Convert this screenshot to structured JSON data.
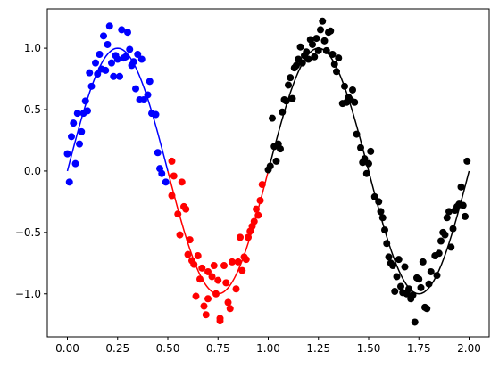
{
  "chart_data": {
    "type": "scatter",
    "title": "",
    "xlabel": "",
    "ylabel": "",
    "xlim": [
      -0.1,
      2.1
    ],
    "ylim": [
      -1.35,
      1.32
    ],
    "grid": false,
    "xticks": [
      0.0,
      0.25,
      0.5,
      0.75,
      1.0,
      1.25,
      1.5,
      1.75,
      2.0
    ],
    "xtick_labels": [
      "0.00",
      "0.25",
      "0.50",
      "0.75",
      "1.00",
      "1.25",
      "1.50",
      "1.75",
      "2.00"
    ],
    "yticks": [
      -1.0,
      -0.5,
      0.0,
      0.5,
      1.0
    ],
    "ytick_labels": [
      "−1.0",
      "−0.5",
      "0.0",
      "0.5",
      "1.0"
    ],
    "series": [
      {
        "color": "#0000ff",
        "line": {
          "x_start": 0.0,
          "x_end": 0.5,
          "fit": "sin(2*pi*x)"
        },
        "points": [
          [
            0.0,
            0.14
          ],
          [
            0.01,
            -0.09
          ],
          [
            0.02,
            0.28
          ],
          [
            0.03,
            0.39
          ],
          [
            0.04,
            0.06
          ],
          [
            0.05,
            0.47
          ],
          [
            0.06,
            0.22
          ],
          [
            0.07,
            0.32
          ],
          [
            0.08,
            0.47
          ],
          [
            0.09,
            0.57
          ],
          [
            0.1,
            0.49
          ],
          [
            0.11,
            0.8
          ],
          [
            0.12,
            0.69
          ],
          [
            0.14,
            0.88
          ],
          [
            0.15,
            0.79
          ],
          [
            0.16,
            0.95
          ],
          [
            0.17,
            0.83
          ],
          [
            0.18,
            1.1
          ],
          [
            0.19,
            0.82
          ],
          [
            0.2,
            1.03
          ],
          [
            0.21,
            1.18
          ],
          [
            0.22,
            0.88
          ],
          [
            0.23,
            0.77
          ],
          [
            0.24,
            0.94
          ],
          [
            0.25,
            0.91
          ],
          [
            0.26,
            0.77
          ],
          [
            0.27,
            1.15
          ],
          [
            0.28,
            0.92
          ],
          [
            0.29,
            0.93
          ],
          [
            0.3,
            1.13
          ],
          [
            0.31,
            0.99
          ],
          [
            0.32,
            0.86
          ],
          [
            0.33,
            0.89
          ],
          [
            0.34,
            0.67
          ],
          [
            0.35,
            0.95
          ],
          [
            0.36,
            0.58
          ],
          [
            0.37,
            0.91
          ],
          [
            0.38,
            0.58
          ],
          [
            0.4,
            0.62
          ],
          [
            0.41,
            0.73
          ],
          [
            0.42,
            0.47
          ],
          [
            0.44,
            0.46
          ],
          [
            0.45,
            0.15
          ],
          [
            0.46,
            0.02
          ],
          [
            0.47,
            -0.02
          ],
          [
            0.49,
            -0.09
          ]
        ]
      },
      {
        "color": "#ff0000",
        "line": {
          "x_start": 0.5,
          "x_end": 1.0,
          "fit": "sin(2*pi*x)"
        },
        "points": [
          [
            0.52,
            0.08
          ],
          [
            0.52,
            -0.2
          ],
          [
            0.53,
            -0.04
          ],
          [
            0.55,
            -0.35
          ],
          [
            0.56,
            -0.52
          ],
          [
            0.57,
            -0.09
          ],
          [
            0.58,
            -0.29
          ],
          [
            0.59,
            -0.31
          ],
          [
            0.6,
            -0.68
          ],
          [
            0.61,
            -0.56
          ],
          [
            0.62,
            -0.73
          ],
          [
            0.63,
            -0.76
          ],
          [
            0.64,
            -1.02
          ],
          [
            0.65,
            -0.69
          ],
          [
            0.66,
            -0.88
          ],
          [
            0.67,
            -0.79
          ],
          [
            0.68,
            -1.1
          ],
          [
            0.69,
            -1.17
          ],
          [
            0.7,
            -1.04
          ],
          [
            0.7,
            -0.82
          ],
          [
            0.72,
            -0.86
          ],
          [
            0.73,
            -0.77
          ],
          [
            0.74,
            -1.0
          ],
          [
            0.75,
            -0.89
          ],
          [
            0.76,
            -1.2
          ],
          [
            0.76,
            -1.22
          ],
          [
            0.78,
            -0.77
          ],
          [
            0.79,
            -0.91
          ],
          [
            0.8,
            -1.07
          ],
          [
            0.81,
            -1.12
          ],
          [
            0.82,
            -0.74
          ],
          [
            0.84,
            -0.96
          ],
          [
            0.85,
            -0.74
          ],
          [
            0.86,
            -0.54
          ],
          [
            0.87,
            -0.81
          ],
          [
            0.88,
            -0.7
          ],
          [
            0.89,
            -0.72
          ],
          [
            0.9,
            -0.54
          ],
          [
            0.91,
            -0.49
          ],
          [
            0.92,
            -0.45
          ],
          [
            0.93,
            -0.41
          ],
          [
            0.94,
            -0.31
          ],
          [
            0.95,
            -0.36
          ],
          [
            0.96,
            -0.24
          ],
          [
            0.97,
            -0.11
          ]
        ]
      },
      {
        "color": "#000000",
        "line": {
          "x_start": 1.0,
          "x_end": 2.0,
          "fit": "sin(2*pi*x)"
        },
        "points": [
          [
            1.0,
            0.01
          ],
          [
            1.01,
            0.04
          ],
          [
            1.02,
            0.43
          ],
          [
            1.03,
            0.2
          ],
          [
            1.04,
            0.08
          ],
          [
            1.05,
            0.22
          ],
          [
            1.06,
            0.18
          ],
          [
            1.07,
            0.48
          ],
          [
            1.08,
            0.58
          ],
          [
            1.09,
            0.57
          ],
          [
            1.1,
            0.7
          ],
          [
            1.11,
            0.76
          ],
          [
            1.12,
            0.59
          ],
          [
            1.13,
            0.84
          ],
          [
            1.14,
            0.86
          ],
          [
            1.15,
            0.91
          ],
          [
            1.16,
            1.01
          ],
          [
            1.17,
            0.88
          ],
          [
            1.18,
            0.94
          ],
          [
            1.19,
            0.97
          ],
          [
            1.2,
            0.91
          ],
          [
            1.21,
            1.07
          ],
          [
            1.22,
            1.03
          ],
          [
            1.23,
            0.93
          ],
          [
            1.24,
            1.08
          ],
          [
            1.25,
            0.98
          ],
          [
            1.26,
            1.15
          ],
          [
            1.27,
            1.22
          ],
          [
            1.28,
            1.06
          ],
          [
            1.29,
            0.98
          ],
          [
            1.3,
            1.13
          ],
          [
            1.31,
            1.14
          ],
          [
            1.32,
            0.95
          ],
          [
            1.33,
            0.87
          ],
          [
            1.34,
            0.81
          ],
          [
            1.35,
            0.92
          ],
          [
            1.37,
            0.55
          ],
          [
            1.38,
            0.69
          ],
          [
            1.39,
            0.56
          ],
          [
            1.4,
            0.6
          ],
          [
            1.41,
            0.58
          ],
          [
            1.42,
            0.66
          ],
          [
            1.43,
            0.56
          ],
          [
            1.44,
            0.3
          ],
          [
            1.46,
            0.19
          ],
          [
            1.47,
            0.07
          ],
          [
            1.48,
            0.1
          ],
          [
            1.49,
            -0.02
          ],
          [
            1.5,
            0.06
          ],
          [
            1.51,
            0.16
          ],
          [
            1.53,
            -0.21
          ],
          [
            1.55,
            -0.25
          ],
          [
            1.56,
            -0.33
          ],
          [
            1.57,
            -0.38
          ],
          [
            1.58,
            -0.48
          ],
          [
            1.59,
            -0.59
          ],
          [
            1.6,
            -0.7
          ],
          [
            1.61,
            -0.75
          ],
          [
            1.62,
            -0.77
          ],
          [
            1.63,
            -0.98
          ],
          [
            1.64,
            -0.86
          ],
          [
            1.65,
            -0.72
          ],
          [
            1.66,
            -0.94
          ],
          [
            1.67,
            -0.99
          ],
          [
            1.68,
            -0.78
          ],
          [
            1.69,
            -1.0
          ],
          [
            1.7,
            -0.96
          ],
          [
            1.71,
            -1.04
          ],
          [
            1.72,
            -1.01
          ],
          [
            1.73,
            -1.23
          ],
          [
            1.74,
            -0.87
          ],
          [
            1.75,
            -0.88
          ],
          [
            1.76,
            -0.95
          ],
          [
            1.77,
            -0.74
          ],
          [
            1.78,
            -1.11
          ],
          [
            1.79,
            -1.12
          ],
          [
            1.8,
            -0.92
          ],
          [
            1.81,
            -0.82
          ],
          [
            1.83,
            -0.69
          ],
          [
            1.84,
            -0.85
          ],
          [
            1.85,
            -0.67
          ],
          [
            1.86,
            -0.57
          ],
          [
            1.87,
            -0.5
          ],
          [
            1.88,
            -0.52
          ],
          [
            1.89,
            -0.38
          ],
          [
            1.9,
            -0.33
          ],
          [
            1.91,
            -0.62
          ],
          [
            1.92,
            -0.47
          ],
          [
            1.93,
            -0.32
          ],
          [
            1.94,
            -0.29
          ],
          [
            1.95,
            -0.27
          ],
          [
            1.96,
            -0.13
          ],
          [
            1.97,
            -0.28
          ],
          [
            1.98,
            -0.37
          ],
          [
            1.99,
            0.08
          ]
        ]
      }
    ]
  }
}
